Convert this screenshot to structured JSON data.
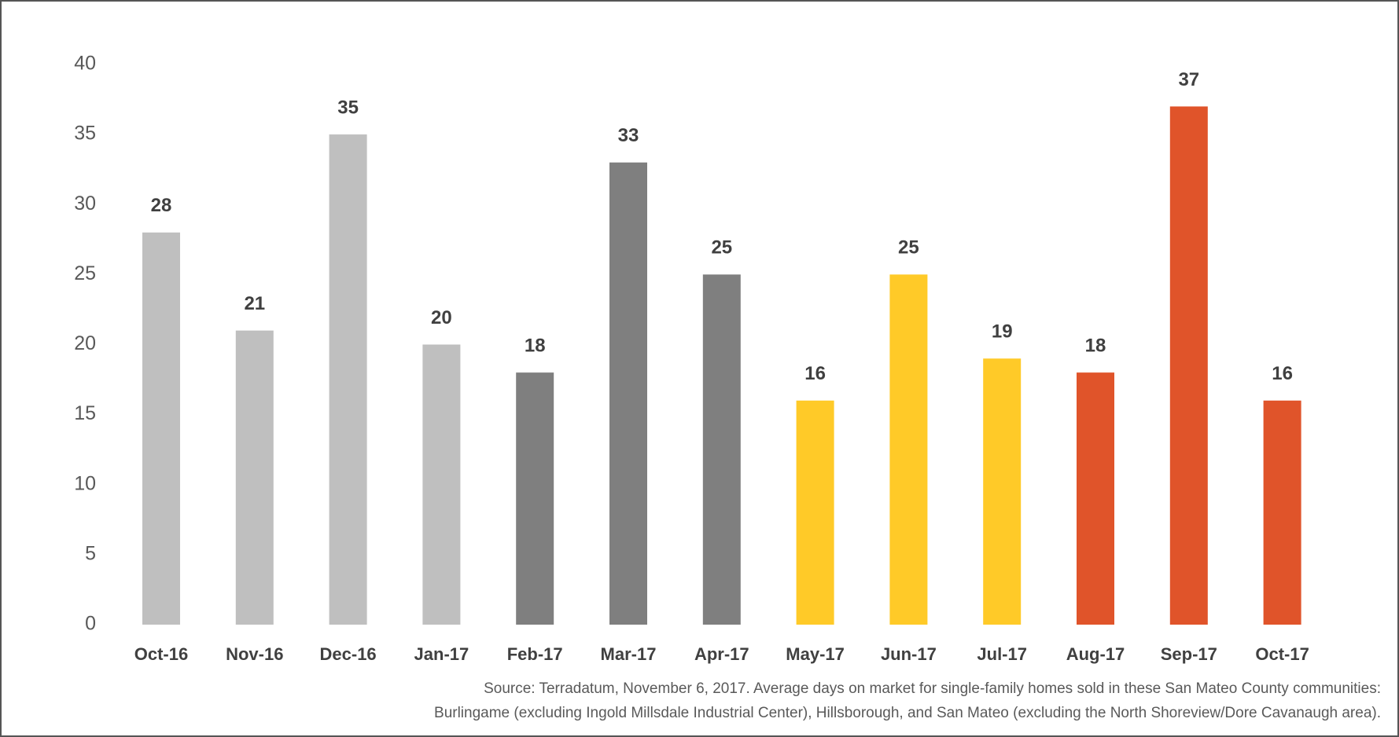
{
  "chart_data": {
    "type": "bar",
    "categories": [
      "Oct-16",
      "Nov-16",
      "Dec-16",
      "Jan-17",
      "Feb-17",
      "Mar-17",
      "Apr-17",
      "May-17",
      "Jun-17",
      "Jul-17",
      "Aug-17",
      "Sep-17",
      "Oct-17"
    ],
    "values": [
      28,
      21,
      35,
      20,
      18,
      33,
      25,
      16,
      25,
      19,
      18,
      37,
      16
    ],
    "colors": [
      "#bfbfbf",
      "#bfbfbf",
      "#bfbfbf",
      "#bfbfbf",
      "#7f7f7f",
      "#7f7f7f",
      "#7f7f7f",
      "#ffca28",
      "#ffca28",
      "#ffca28",
      "#e0542a",
      "#e0542a",
      "#e0542a"
    ],
    "ylim": [
      0,
      40
    ],
    "yticks": [
      0,
      5,
      10,
      15,
      20,
      25,
      30,
      35,
      40
    ],
    "grid": false,
    "notes": [
      "Source: Terradatum, November 6, 2017. Average days on market for single-family homes sold in these San Mateo County communities:",
      "Burlingame (excluding Ingold Millsdale Industrial Center), Hillsborough, and San Mateo (excluding the North Shoreview/Dore Cavanaugh area)."
    ]
  }
}
